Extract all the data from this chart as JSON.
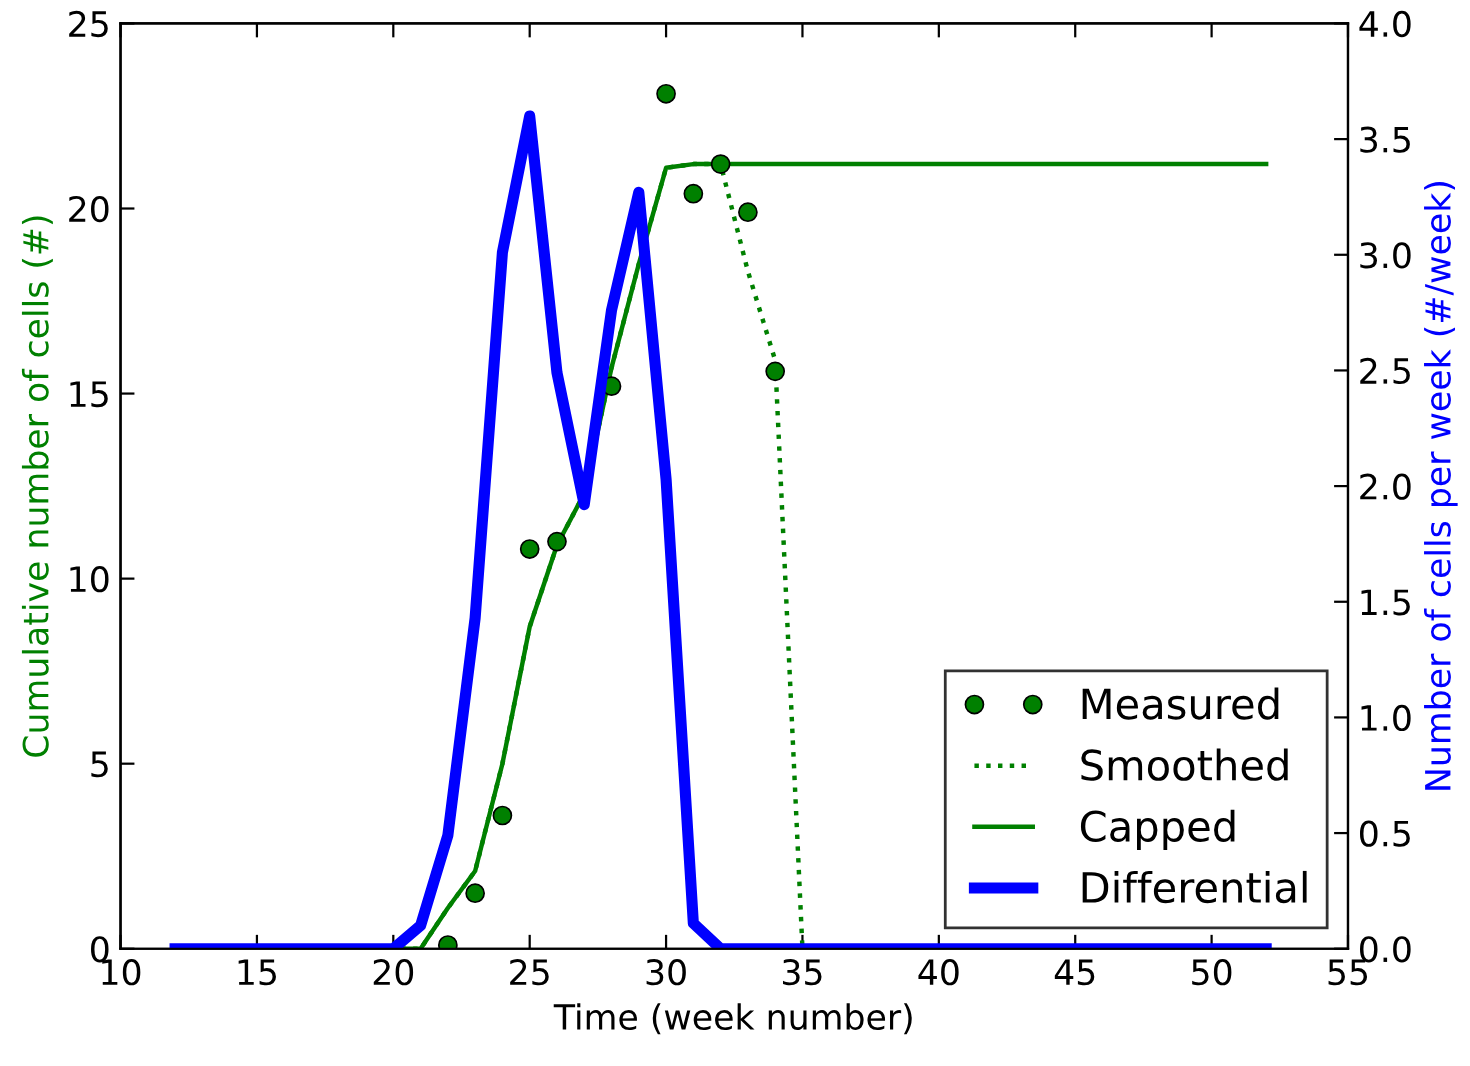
{
  "chart_data": {
    "type": "line",
    "xlabel": "Time (week number)",
    "ylabel": "Cumulative number of cells (#)",
    "y2label": "Number of cells per week (#/week)",
    "xlim": [
      10,
      55
    ],
    "xticks": [
      10,
      15,
      20,
      25,
      30,
      35,
      40,
      45,
      50,
      55
    ],
    "ylim": [
      0,
      25
    ],
    "yticks": [
      0,
      5,
      10,
      15,
      20,
      25
    ],
    "y2lim": [
      0,
      4
    ],
    "y2ticks": [
      {
        "value": 0,
        "label": "0.0"
      },
      {
        "value": 0.5,
        "label": "0.5"
      },
      {
        "value": 1,
        "label": "1.0"
      },
      {
        "value": 1.5,
        "label": "1.5"
      },
      {
        "value": 2,
        "label": "2.0"
      },
      {
        "value": 2.5,
        "label": "2.5"
      },
      {
        "value": 3,
        "label": "3.0"
      },
      {
        "value": 3.5,
        "label": "3.5"
      },
      {
        "value": 4,
        "label": "4.0"
      }
    ],
    "grid": false,
    "legend": "bottom right",
    "series": [
      {
        "name": "Measured",
        "type": "scatter",
        "marker": "circle",
        "color": "#008000",
        "x": [
          22,
          23,
          24,
          25,
          26,
          28,
          30,
          31,
          32,
          33,
          34
        ],
        "values": [
          0.1,
          1.5,
          3.6,
          10.8,
          11.0,
          15.2,
          23.1,
          20.4,
          21.2,
          19.9,
          15.6
        ]
      },
      {
        "name": "Smoothed",
        "line_style": "dotted",
        "color": "#008000",
        "x": [
          19,
          20,
          21,
          22,
          23,
          24,
          25,
          26,
          27,
          28,
          29,
          30,
          31,
          32,
          33,
          34,
          35
        ],
        "values": [
          0,
          0,
          0,
          1.1,
          2.1,
          5.0,
          8.7,
          10.9,
          12.3,
          15.7,
          18.5,
          21.1,
          21.2,
          21.2,
          18.3,
          15.9,
          0
        ]
      },
      {
        "name": "Capped",
        "line_style": "solid",
        "color": "#008000",
        "x": [
          19,
          20,
          21,
          22,
          23,
          24,
          25,
          26,
          27,
          28,
          29,
          30,
          31,
          32,
          33,
          34,
          35,
          36,
          37,
          38,
          39,
          40,
          41,
          42,
          43,
          44,
          45,
          46,
          47,
          48,
          49,
          50,
          51,
          52
        ],
        "values": [
          0,
          0,
          0,
          1.1,
          2.1,
          5.0,
          8.7,
          10.9,
          12.3,
          15.7,
          18.5,
          21.1,
          21.2,
          21.2,
          21.2,
          21.2,
          21.2,
          21.2,
          21.2,
          21.2,
          21.2,
          21.2,
          21.2,
          21.2,
          21.2,
          21.2,
          21.2,
          21.2,
          21.2,
          21.2,
          21.2,
          21.2,
          21.2,
          21.2
        ]
      },
      {
        "name": "Differential",
        "axis": "y2",
        "line_style": "solid",
        "color": "#0000ff",
        "x": [
          12,
          13,
          14,
          15,
          16,
          17,
          18,
          19,
          20,
          21,
          22,
          23,
          24,
          25,
          26,
          27,
          28,
          29,
          30,
          31,
          32,
          33,
          34,
          35,
          36,
          37,
          38,
          39,
          40,
          41,
          42,
          43,
          44,
          45,
          46,
          47,
          48,
          49,
          50,
          51,
          52
        ],
        "values": [
          0,
          0,
          0,
          0,
          0,
          0,
          0,
          0,
          0,
          0.1,
          0.49,
          1.43,
          3.01,
          3.6,
          2.49,
          1.92,
          2.76,
          3.27,
          2.03,
          0.11,
          0,
          0,
          0,
          0,
          0,
          0,
          0,
          0,
          0,
          0,
          0,
          0,
          0,
          0,
          0,
          0,
          0,
          0,
          0,
          0,
          0
        ]
      }
    ]
  }
}
